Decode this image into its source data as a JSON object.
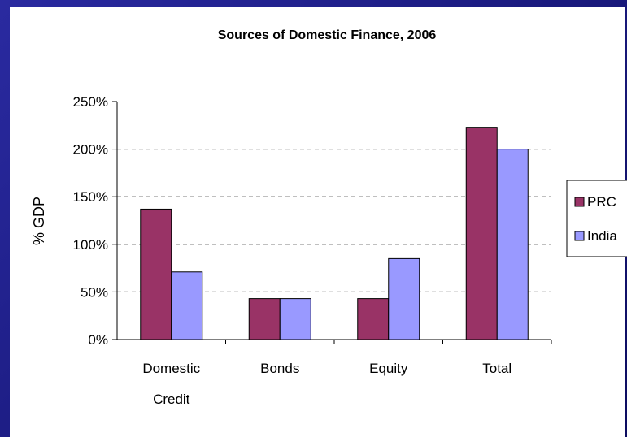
{
  "chart_data": {
    "type": "bar",
    "title": "Sources of Domestic Finance, 2006",
    "ylabel": "% GDP",
    "xlabel": "",
    "categories": [
      [
        "Domestic",
        "Credit"
      ],
      [
        "Bonds"
      ],
      [
        "Equity"
      ],
      [
        "Total"
      ]
    ],
    "series": [
      {
        "name": "PRC",
        "color": "#993366",
        "values": [
          137,
          43,
          43,
          223
        ]
      },
      {
        "name": "India",
        "color": "#9999ff",
        "values": [
          71,
          43,
          85,
          200
        ]
      }
    ],
    "ylim": [
      0,
      250
    ],
    "yticks": [
      0,
      50,
      100,
      150,
      200,
      250
    ],
    "ytick_labels": [
      "0%",
      "50%",
      "100%",
      "150%",
      "200%",
      "250%"
    ],
    "grid": true,
    "legend_position": "right"
  }
}
